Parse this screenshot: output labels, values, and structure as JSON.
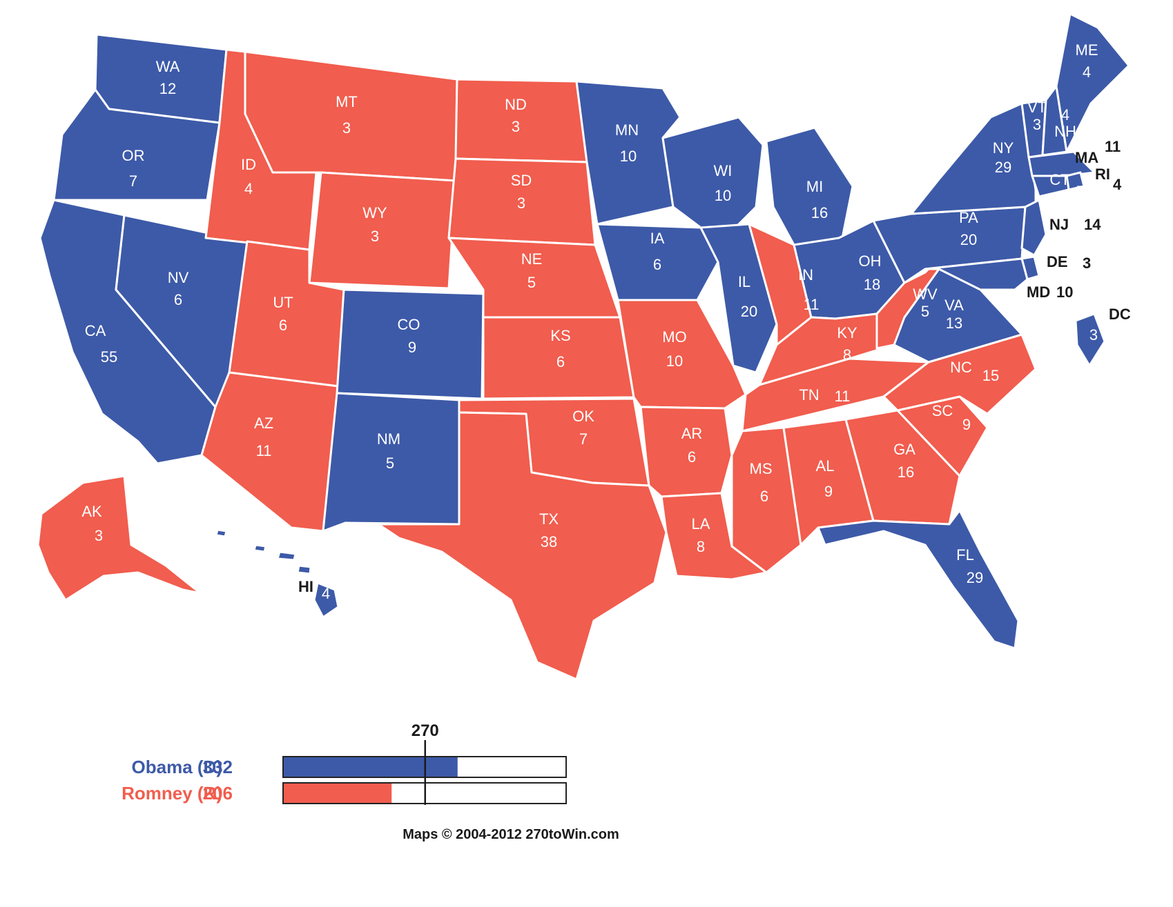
{
  "colors": {
    "democrat": "#3d5aa8",
    "republican": "#f15d4e",
    "border": "#ffffff",
    "label_on_fill": "#ffffff",
    "label_outside": "#1a1a1a"
  },
  "states": [
    {
      "abbr": "WA",
      "ev": "12",
      "party": "D"
    },
    {
      "abbr": "OR",
      "ev": "7",
      "party": "D"
    },
    {
      "abbr": "CA",
      "ev": "55",
      "party": "D"
    },
    {
      "abbr": "NV",
      "ev": "6",
      "party": "D"
    },
    {
      "abbr": "ID",
      "ev": "4",
      "party": "R"
    },
    {
      "abbr": "MT",
      "ev": "3",
      "party": "R"
    },
    {
      "abbr": "WY",
      "ev": "3",
      "party": "R"
    },
    {
      "abbr": "UT",
      "ev": "6",
      "party": "R"
    },
    {
      "abbr": "AZ",
      "ev": "11",
      "party": "R"
    },
    {
      "abbr": "CO",
      "ev": "9",
      "party": "D"
    },
    {
      "abbr": "NM",
      "ev": "5",
      "party": "D"
    },
    {
      "abbr": "ND",
      "ev": "3",
      "party": "R"
    },
    {
      "abbr": "SD",
      "ev": "3",
      "party": "R"
    },
    {
      "abbr": "NE",
      "ev": "5",
      "party": "R"
    },
    {
      "abbr": "KS",
      "ev": "6",
      "party": "R"
    },
    {
      "abbr": "OK",
      "ev": "7",
      "party": "R"
    },
    {
      "abbr": "TX",
      "ev": "38",
      "party": "R"
    },
    {
      "abbr": "MN",
      "ev": "10",
      "party": "D"
    },
    {
      "abbr": "IA",
      "ev": "6",
      "party": "D"
    },
    {
      "abbr": "MO",
      "ev": "10",
      "party": "R"
    },
    {
      "abbr": "AR",
      "ev": "6",
      "party": "R"
    },
    {
      "abbr": "LA",
      "ev": "8",
      "party": "R"
    },
    {
      "abbr": "WI",
      "ev": "10",
      "party": "D"
    },
    {
      "abbr": "IL",
      "ev": "20",
      "party": "D"
    },
    {
      "abbr": "MI",
      "ev": "16",
      "party": "D"
    },
    {
      "abbr": "IN",
      "ev": "11",
      "party": "R"
    },
    {
      "abbr": "OH",
      "ev": "18",
      "party": "D"
    },
    {
      "abbr": "KY",
      "ev": "8",
      "party": "R"
    },
    {
      "abbr": "TN",
      "ev": "11",
      "party": "R"
    },
    {
      "abbr": "MS",
      "ev": "6",
      "party": "R"
    },
    {
      "abbr": "AL",
      "ev": "9",
      "party": "R"
    },
    {
      "abbr": "GA",
      "ev": "16",
      "party": "R"
    },
    {
      "abbr": "FL",
      "ev": "29",
      "party": "D"
    },
    {
      "abbr": "SC",
      "ev": "9",
      "party": "R"
    },
    {
      "abbr": "NC",
      "ev": "15",
      "party": "R"
    },
    {
      "abbr": "VA",
      "ev": "13",
      "party": "D"
    },
    {
      "abbr": "WV",
      "ev": "5",
      "party": "R"
    },
    {
      "abbr": "PA",
      "ev": "20",
      "party": "D"
    },
    {
      "abbr": "NY",
      "ev": "29",
      "party": "D"
    },
    {
      "abbr": "VT",
      "ev": "3",
      "party": "D"
    },
    {
      "abbr": "NH",
      "ev": "4",
      "party": "D"
    },
    {
      "abbr": "ME",
      "ev": "4",
      "party": "D"
    },
    {
      "abbr": "MA",
      "ev": "11",
      "party": "D"
    },
    {
      "abbr": "RI",
      "ev": "4",
      "party": "D"
    },
    {
      "abbr": "CT",
      "ev": "7",
      "party": "D"
    },
    {
      "abbr": "NJ",
      "ev": "14",
      "party": "D"
    },
    {
      "abbr": "DE",
      "ev": "3",
      "party": "D"
    },
    {
      "abbr": "MD",
      "ev": "10",
      "party": "D"
    },
    {
      "abbr": "DC",
      "ev": "3",
      "party": "D"
    },
    {
      "abbr": "AK",
      "ev": "3",
      "party": "R"
    },
    {
      "abbr": "HI",
      "ev": "4",
      "party": "D"
    }
  ],
  "legend": {
    "threshold_label": "270",
    "threshold_value": 270,
    "total_electoral_votes": 538,
    "candidates": [
      {
        "label": "Obama (D)",
        "votes": "332",
        "value": 332,
        "party": "D"
      },
      {
        "label": "Romney (R)",
        "votes": "206",
        "value": 206,
        "party": "R"
      }
    ]
  },
  "credit": "Maps © 2004-2012 270toWin.com"
}
